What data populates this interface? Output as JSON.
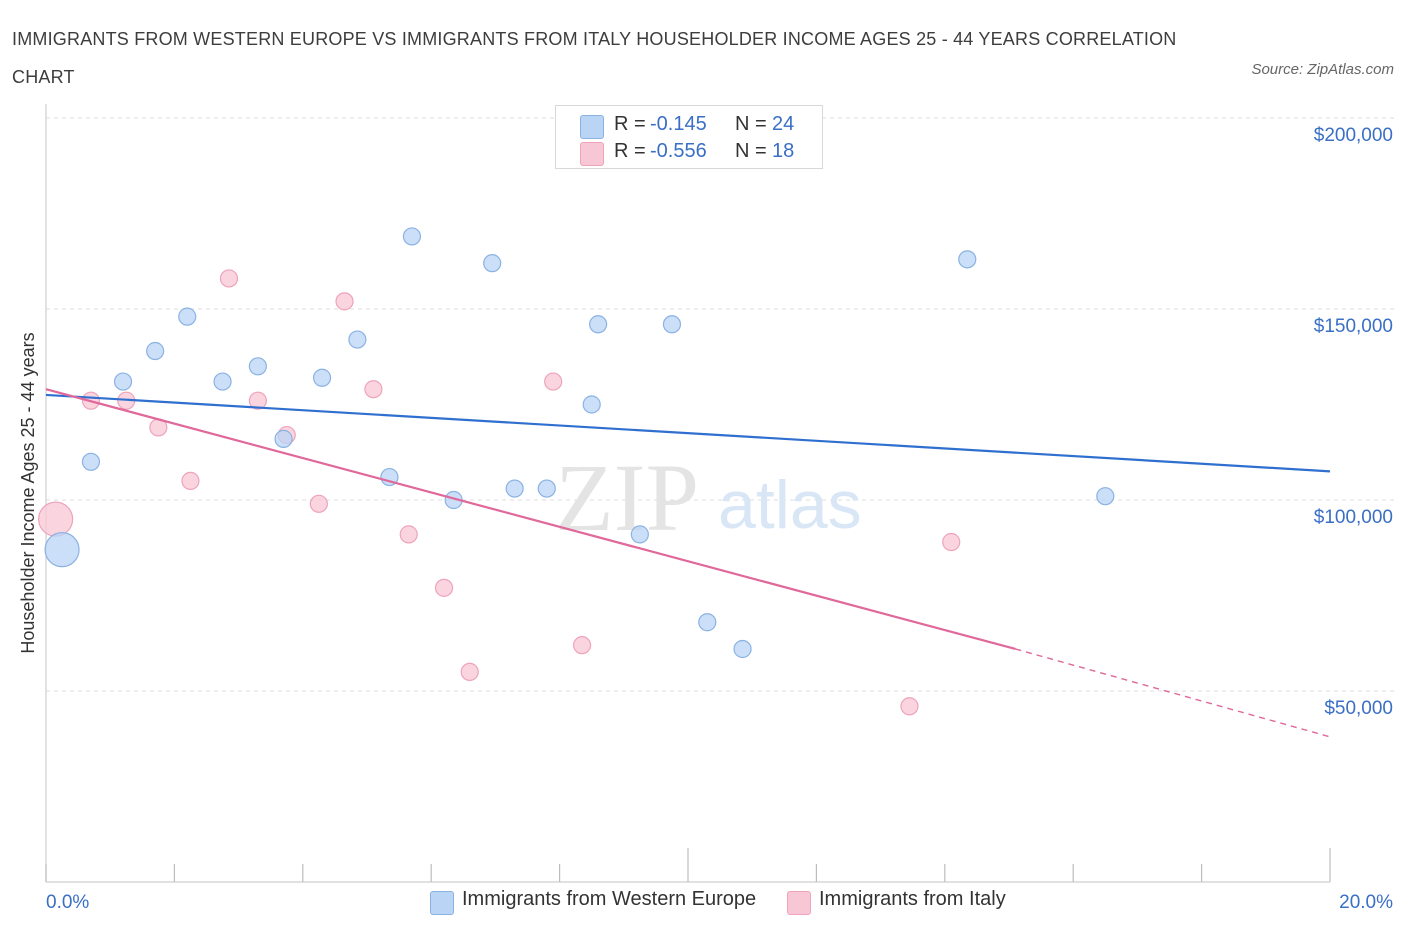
{
  "title": "IMMIGRANTS FROM WESTERN EUROPE VS IMMIGRANTS FROM ITALY HOUSEHOLDER INCOME AGES 25 - 44 YEARS CORRELATION CHART",
  "source": "Source: ZipAtlas.com",
  "watermark": {
    "zip": "ZIP",
    "atlas": "atlas"
  },
  "colors": {
    "blue_fill": "#b9d4f5",
    "blue_stroke": "#8ab2e3",
    "blue_line": "#2f6fcf",
    "pink_fill": "#f8c7d6",
    "pink_stroke": "#eea3bb",
    "pink_line": "#e0689a",
    "axis_text": "#3a6fc6",
    "grid": "#dcdcdc"
  },
  "legend": {
    "rows": [
      {
        "r_label": "R =",
        "r_value": "-0.145",
        "n_label": "N =",
        "n_value": "24",
        "color": "blue"
      },
      {
        "r_label": "R =",
        "r_value": "-0.556",
        "n_label": "N =",
        "n_value": "18",
        "color": "pink"
      }
    ]
  },
  "bottom_legend": [
    "Immigrants from Western Europe",
    "Immigrants from Italy"
  ],
  "chart_data": {
    "type": "scatter",
    "title": "IMMIGRANTS FROM WESTERN EUROPE VS IMMIGRANTS FROM ITALY HOUSEHOLDER INCOME AGES 25 - 44 YEARS CORRELATION CHART",
    "xlabel": "",
    "ylabel": "Householder Income Ages 25 - 44 years",
    "xlim": [
      0,
      20
    ],
    "ylim": [
      0,
      200000
    ],
    "x_tick_labels": [
      "0.0%",
      "20.0%"
    ],
    "y_ticks": [
      50000,
      100000,
      150000,
      200000
    ],
    "y_tick_labels": [
      "$50,000",
      "$100,000",
      "$150,000",
      "$200,000"
    ],
    "grid": true,
    "legend_position": "top-center",
    "series": [
      {
        "name": "Immigrants from Western Europe",
        "color": "blue",
        "points": [
          {
            "x": 0.25,
            "y": 87000,
            "big": true
          },
          {
            "x": 0.7,
            "y": 110000
          },
          {
            "x": 1.2,
            "y": 131000
          },
          {
            "x": 1.7,
            "y": 139000
          },
          {
            "x": 2.2,
            "y": 148000
          },
          {
            "x": 2.75,
            "y": 131000
          },
          {
            "x": 3.3,
            "y": 135000
          },
          {
            "x": 3.7,
            "y": 116000
          },
          {
            "x": 4.3,
            "y": 132000
          },
          {
            "x": 4.85,
            "y": 142000
          },
          {
            "x": 5.35,
            "y": 106000
          },
          {
            "x": 5.7,
            "y": 169000
          },
          {
            "x": 6.35,
            "y": 100000
          },
          {
            "x": 6.95,
            "y": 162000
          },
          {
            "x": 7.3,
            "y": 103000
          },
          {
            "x": 7.8,
            "y": 103000
          },
          {
            "x": 8.5,
            "y": 125000
          },
          {
            "x": 8.6,
            "y": 146000
          },
          {
            "x": 9.25,
            "y": 91000
          },
          {
            "x": 9.75,
            "y": 146000
          },
          {
            "x": 10.3,
            "y": 68000
          },
          {
            "x": 10.85,
            "y": 61000
          },
          {
            "x": 14.35,
            "y": 163000
          },
          {
            "x": 16.5,
            "y": 101000
          }
        ],
        "trend": {
          "x0": 0,
          "y0": 127500,
          "x1": 20,
          "y1": 107500
        }
      },
      {
        "name": "Immigrants from Italy",
        "color": "pink",
        "points": [
          {
            "x": 0.15,
            "y": 95000,
            "big": true
          },
          {
            "x": 0.7,
            "y": 126000
          },
          {
            "x": 1.25,
            "y": 126000
          },
          {
            "x": 1.75,
            "y": 119000
          },
          {
            "x": 2.25,
            "y": 105000
          },
          {
            "x": 2.85,
            "y": 158000
          },
          {
            "x": 3.3,
            "y": 126000
          },
          {
            "x": 3.75,
            "y": 117000
          },
          {
            "x": 4.25,
            "y": 99000
          },
          {
            "x": 4.65,
            "y": 152000
          },
          {
            "x": 5.1,
            "y": 129000
          },
          {
            "x": 5.65,
            "y": 91000
          },
          {
            "x": 6.2,
            "y": 77000
          },
          {
            "x": 6.6,
            "y": 55000
          },
          {
            "x": 7.9,
            "y": 131000
          },
          {
            "x": 8.35,
            "y": 62000
          },
          {
            "x": 13.45,
            "y": 46000
          },
          {
            "x": 14.1,
            "y": 89000
          }
        ],
        "trend": {
          "x0": 0,
          "y0": 129000,
          "x1": 15.1,
          "y1": 61000,
          "dashed_to_x": 20,
          "dashed_to_y": 38000
        }
      }
    ]
  }
}
